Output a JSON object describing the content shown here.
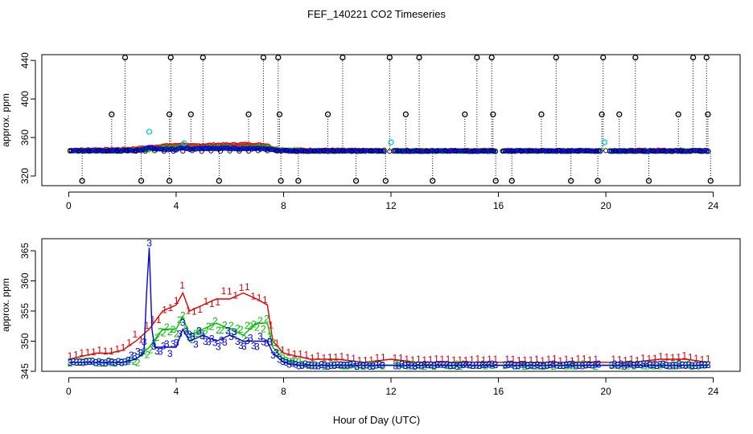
{
  "figure": {
    "title": "FEF_140221  CO2 Timeseries",
    "xlabel": "Hour of Day (UTC)"
  },
  "colors": {
    "black": "#000000",
    "red": "#dd0000",
    "green": "#00bb00",
    "blue": "#0000dd",
    "cyan": "#00cccc"
  },
  "chart_data": [
    {
      "type": "scatter",
      "panel": "top",
      "ylabel": "approx. ppm",
      "xlim": [
        -1,
        25
      ],
      "ylim": [
        310,
        446
      ],
      "xticks": [
        0,
        4,
        8,
        12,
        16,
        20,
        24
      ],
      "yticks": [
        320,
        360,
        400,
        440
      ],
      "grid": false,
      "baseline": 346,
      "series": [
        {
          "color": "black",
          "marker": "circle",
          "spikes_high": [
            2.1,
            3.8,
            5.0,
            7.25,
            7.8,
            10.2,
            11.95,
            13.05,
            15.2,
            15.75,
            18.15,
            19.9,
            21.1,
            23.25,
            23.75
          ],
          "spikes_mid": [
            1.6,
            3.75,
            4.55,
            6.7,
            7.85,
            9.65,
            12.55,
            14.75,
            15.8,
            17.6,
            19.85,
            20.5,
            22.7,
            23.8
          ],
          "spikes_low": [
            0.5,
            2.7,
            3.75,
            5.6,
            7.9,
            8.55,
            10.7,
            11.8,
            13.55,
            15.9,
            16.5,
            18.7,
            19.7,
            21.6,
            23.9
          ]
        },
        {
          "color": "red",
          "marker": "circle",
          "trace": "1"
        },
        {
          "color": "green",
          "marker": "circle",
          "trace": "2"
        },
        {
          "color": "blue",
          "marker": "circle",
          "trace": "3"
        },
        {
          "color": "cyan",
          "marker": "circle",
          "points": [
            [
              3.0,
              366
            ],
            [
              4.3,
              354
            ],
            [
              12.0,
              355
            ],
            [
              19.95,
              355
            ]
          ]
        }
      ]
    },
    {
      "type": "line",
      "panel": "bottom",
      "ylabel": "approx. ppm",
      "xlim": [
        -1,
        25
      ],
      "ylim": [
        345,
        367
      ],
      "xticks": [
        0,
        4,
        8,
        12,
        16,
        20,
        24
      ],
      "yticks": [
        345,
        350,
        355,
        360,
        365
      ],
      "grid": false,
      "gaps": [
        [
          11.8,
          12.1
        ],
        [
          15.95,
          16.15
        ],
        [
          19.8,
          20.1
        ]
      ],
      "series": [
        {
          "label_char": "1",
          "color": "red",
          "x": [
            0,
            0.5,
            1,
            1.5,
            2,
            2.5,
            3,
            3.5,
            4,
            4.25,
            4.5,
            5,
            5.5,
            6,
            6.5,
            7,
            7.4,
            7.6,
            8,
            8.5,
            9,
            10,
            11,
            12,
            13,
            14,
            15,
            16,
            17,
            18,
            19,
            20,
            21,
            22,
            23,
            23.8
          ],
          "y": [
            347,
            347.5,
            348,
            348,
            348.5,
            350,
            352,
            355,
            356,
            358,
            355,
            356,
            357,
            357,
            358,
            357,
            356,
            350,
            348,
            347.5,
            347,
            347,
            346.5,
            347,
            346.5,
            346.5,
            346.5,
            346.5,
            346.5,
            346.5,
            346.5,
            346.5,
            346.5,
            347,
            347,
            346.5
          ]
        },
        {
          "label_char": "2",
          "color": "green",
          "x": [
            0,
            0.5,
            1,
            1.5,
            2,
            2.5,
            3,
            3.5,
            4,
            4.25,
            4.5,
            5,
            5.5,
            6,
            6.5,
            7,
            7.4,
            7.6,
            8,
            8.5,
            9,
            10,
            11,
            12,
            13,
            14,
            15,
            16,
            17,
            18,
            19,
            20,
            21,
            22,
            23,
            23.8
          ],
          "y": [
            346.5,
            346.5,
            346.5,
            346.5,
            346.5,
            347,
            349,
            352,
            352,
            354,
            351,
            352,
            353,
            352,
            351,
            353,
            353,
            349,
            347,
            346.5,
            346,
            346,
            346,
            346,
            346,
            346,
            346,
            346,
            346,
            346,
            346,
            346,
            346,
            346,
            346,
            346
          ]
        },
        {
          "label_char": "3",
          "color": "blue",
          "x": [
            0,
            0.5,
            1,
            1.5,
            2,
            2.5,
            2.8,
            2.9,
            3.0,
            3.1,
            3.2,
            3.5,
            4,
            4.25,
            4.5,
            5,
            5.5,
            6,
            6.5,
            7,
            7.4,
            7.6,
            8,
            8.5,
            9,
            10,
            11,
            12,
            13,
            14,
            15,
            16,
            17,
            18,
            19,
            20,
            21,
            22,
            23,
            23.8
          ],
          "y": [
            346.5,
            346.5,
            346.5,
            346.5,
            346.5,
            347,
            348,
            358,
            365.5,
            352,
            349,
            349,
            349,
            352,
            350,
            351,
            350,
            351,
            350,
            350,
            350,
            348,
            346.5,
            346,
            346,
            346,
            346,
            346,
            346,
            346,
            346,
            346,
            346,
            346,
            346,
            346,
            346,
            346,
            346,
            346
          ]
        }
      ],
      "annotations": [
        {
          "text": "3",
          "x": 3.0,
          "y": 366.3,
          "color": "blue"
        }
      ]
    }
  ]
}
